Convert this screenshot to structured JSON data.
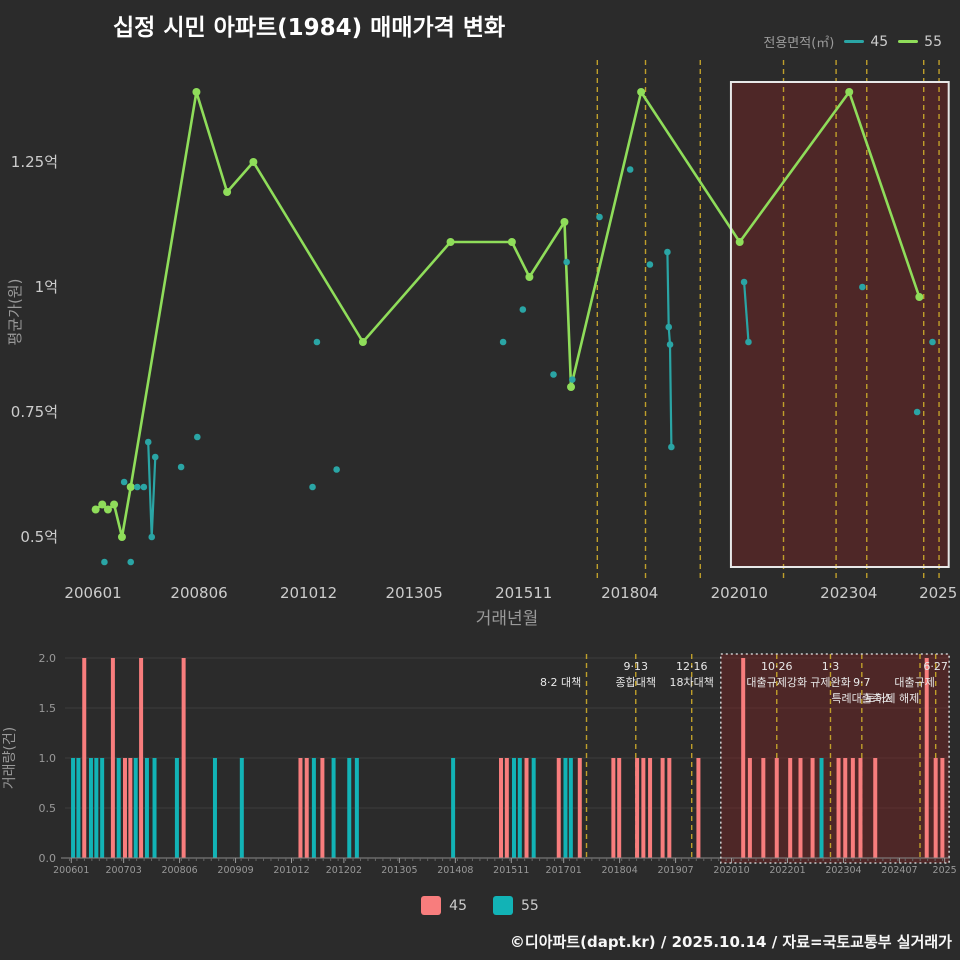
{
  "title": "십정 시민 아파트(1984) 매매가격 변화",
  "footer": "©디아파트(dapt.kr) / 2025.10.14 / 자료=국토교통부 실거래가",
  "colors": {
    "background": "#2b2b2b",
    "series_55_green": "#8fdd5a",
    "series_45_teal": "#2aa5a5",
    "bar_45_red": "#f87d7d",
    "bar_55_teal": "#12b3b6",
    "policy_line_gold": "#c7a62b",
    "highlight_fill": "rgba(160,30,30,0.30)",
    "highlight_border": "#e8e8e8",
    "axis_text": "#cccccc",
    "axis_title": "#999999",
    "grid": "#3c3c3c"
  },
  "legend_top": {
    "label": "전용면적(㎡)",
    "items": [
      {
        "name": "45",
        "color": "#2aa5a5"
      },
      {
        "name": "55",
        "color": "#8fdd5a"
      }
    ]
  },
  "legend_bottom": {
    "items": [
      {
        "name": "45",
        "color": "#f87d7d"
      },
      {
        "name": "55",
        "color": "#12b3b6"
      }
    ]
  },
  "chart_data": [
    {
      "type": "line",
      "title": "십정 시민 아파트(1984) 매매가격 변화",
      "xlabel": "거래년월",
      "ylabel": "평균가(원)",
      "x_domain": [
        2005.4,
        2025.6
      ],
      "y_domain": [
        0.424,
        1.454
      ],
      "y_unit": "억",
      "grid": "off",
      "legend_position": "top-right",
      "x_ticks": [
        {
          "v": 2006.04,
          "label": "200601"
        },
        {
          "v": 2008.46,
          "label": "200806"
        },
        {
          "v": 2010.96,
          "label": "201012"
        },
        {
          "v": 2013.37,
          "label": "201305"
        },
        {
          "v": 2015.87,
          "label": "201511"
        },
        {
          "v": 2018.29,
          "label": "201804"
        },
        {
          "v": 2020.79,
          "label": "202010"
        },
        {
          "v": 2023.29,
          "label": "202304"
        },
        {
          "v": 2025.33,
          "label": "2025"
        }
      ],
      "y_ticks": [
        {
          "v": 0.5,
          "label": "0.5억"
        },
        {
          "v": 0.75,
          "label": "0.75억"
        },
        {
          "v": 1.0,
          "label": "1억"
        },
        {
          "v": 1.25,
          "label": "1.25억"
        }
      ],
      "policy_lines": [
        2017.55,
        2018.65,
        2019.9,
        2021.8,
        2023.0,
        2023.7,
        2025.0,
        2025.35
      ],
      "highlight_box": {
        "x0": 2020.6,
        "x1": 2025.57,
        "y0": 0.44,
        "y1": 1.41
      },
      "series": [
        {
          "name": "55",
          "style": "line+points",
          "points": [
            [
              2006.1,
              0.555
            ],
            [
              2006.25,
              0.565
            ],
            [
              2006.38,
              0.555
            ],
            [
              2006.52,
              0.565
            ],
            [
              2006.7,
              0.5
            ],
            [
              2006.9,
              0.6
            ],
            [
              2008.4,
              1.39
            ],
            [
              2009.1,
              1.19
            ],
            [
              2009.7,
              1.25
            ],
            [
              2012.2,
              0.89
            ],
            [
              2014.2,
              1.09
            ],
            [
              2015.6,
              1.09
            ],
            [
              2016.0,
              1.02
            ],
            [
              2016.8,
              1.13
            ],
            [
              2016.95,
              0.8
            ],
            [
              2018.55,
              1.39
            ],
            [
              2020.8,
              1.09
            ],
            [
              2023.3,
              1.39
            ],
            [
              2024.9,
              0.98
            ]
          ]
        },
        {
          "name": "45",
          "style": "scatter+segments",
          "segments": [
            [
              [
                2006.3,
                0.45
              ]
            ],
            [
              [
                2006.75,
                0.61
              ]
            ],
            [
              [
                2006.9,
                0.45
              ]
            ],
            [
              [
                2007.05,
                0.6
              ]
            ],
            [
              [
                2007.2,
                0.6
              ]
            ],
            [
              [
                2007.3,
                0.69
              ],
              [
                2007.38,
                0.5
              ],
              [
                2007.46,
                0.66
              ]
            ],
            [
              [
                2008.05,
                0.64
              ]
            ],
            [
              [
                2008.42,
                0.7
              ]
            ],
            [
              [
                2011.05,
                0.6
              ]
            ],
            [
              [
                2011.15,
                0.89
              ]
            ],
            [
              [
                2011.6,
                0.635
              ]
            ],
            [
              [
                2015.4,
                0.89
              ]
            ],
            [
              [
                2015.85,
                0.955
              ]
            ],
            [
              [
                2016.55,
                0.825
              ]
            ],
            [
              [
                2016.85,
                1.05
              ]
            ],
            [
              [
                2016.98,
                0.815
              ]
            ],
            [
              [
                2017.6,
                1.14
              ]
            ],
            [
              [
                2018.3,
                1.235
              ]
            ],
            [
              [
                2018.75,
                1.045
              ]
            ],
            [
              [
                2019.15,
                1.07
              ],
              [
                2019.18,
                0.92
              ],
              [
                2019.21,
                0.885
              ],
              [
                2019.24,
                0.68
              ]
            ],
            [
              [
                2020.9,
                1.01
              ],
              [
                2021.0,
                0.89
              ]
            ],
            [
              [
                2023.6,
                1.0
              ]
            ],
            [
              [
                2024.85,
                0.75
              ]
            ],
            [
              [
                2025.2,
                0.89
              ]
            ]
          ]
        }
      ]
    },
    {
      "type": "bar",
      "ylabel": "거래량(건)",
      "x_domain": [
        2005.9,
        2025.67
      ],
      "y_domain": [
        0,
        2.0
      ],
      "grid": "horizontal",
      "x_ticks": [
        {
          "v": 2006.04,
          "label": "200601"
        },
        {
          "v": 2007.21,
          "label": "200703"
        },
        {
          "v": 2008.46,
          "label": "200806"
        },
        {
          "v": 2009.71,
          "label": "200909"
        },
        {
          "v": 2010.96,
          "label": "201012"
        },
        {
          "v": 2012.13,
          "label": "201202"
        },
        {
          "v": 2013.37,
          "label": "201305"
        },
        {
          "v": 2014.62,
          "label": "201408"
        },
        {
          "v": 2015.87,
          "label": "201511"
        },
        {
          "v": 2017.04,
          "label": "201701"
        },
        {
          "v": 2018.29,
          "label": "201804"
        },
        {
          "v": 2019.54,
          "label": "201907"
        },
        {
          "v": 2020.79,
          "label": "202010"
        },
        {
          "v": 2022.04,
          "label": "202201"
        },
        {
          "v": 2023.29,
          "label": "202304"
        },
        {
          "v": 2024.54,
          "label": "202407"
        },
        {
          "v": 2025.55,
          "label": "2025"
        }
      ],
      "y_ticks": [
        {
          "v": 0.0,
          "label": "0.0"
        },
        {
          "v": 0.5,
          "label": "0.5"
        },
        {
          "v": 1.0,
          "label": "1.0"
        },
        {
          "v": 1.5,
          "label": "1.5"
        },
        {
          "v": 2.0,
          "label": "2.0"
        }
      ],
      "policy_lines": [
        2017.55,
        2018.65,
        2019.9,
        2021.8,
        2023.0,
        2023.7,
        2025.0,
        2025.35
      ],
      "highlight_box": {
        "x0": 2020.55,
        "x1": 2025.65
      },
      "annotations": [
        {
          "x": 2017.5,
          "row": 1,
          "align": "end",
          "text": "8·2 대책"
        },
        {
          "x": 2018.65,
          "row": 0,
          "align": "middle",
          "text": "9·13"
        },
        {
          "x": 2018.65,
          "row": 1,
          "align": "middle",
          "text": "종합대책"
        },
        {
          "x": 2019.9,
          "row": 0,
          "align": "middle",
          "text": "12·16"
        },
        {
          "x": 2019.9,
          "row": 1,
          "align": "middle",
          "text": "18차대책"
        },
        {
          "x": 2021.8,
          "row": 0,
          "align": "middle",
          "text": "10·26"
        },
        {
          "x": 2021.8,
          "row": 1,
          "align": "middle",
          "text": "대출규제강화"
        },
        {
          "x": 2023.0,
          "row": 0,
          "align": "middle",
          "text": "1·3"
        },
        {
          "x": 2023.0,
          "row": 1,
          "align": "middle",
          "text": "규제완화"
        },
        {
          "x": 2023.7,
          "row": 1,
          "align": "middle",
          "text": "9·7"
        },
        {
          "x": 2023.7,
          "row": 2,
          "align": "middle",
          "text": "특례대출축소"
        },
        {
          "x": 2025.05,
          "row": 2,
          "align": "end",
          "text": "토허제 해제"
        },
        {
          "x": 2025.35,
          "row": 0,
          "align": "middle",
          "text": "6·27"
        },
        {
          "x": 2025.4,
          "row": 1,
          "align": "end",
          "text": "대출규제"
        }
      ],
      "bars": [
        [
          2006.08,
          "55",
          1
        ],
        [
          2006.2,
          "55",
          1
        ],
        [
          2006.33,
          "45",
          2
        ],
        [
          2006.48,
          "55",
          1
        ],
        [
          2006.6,
          "55",
          1
        ],
        [
          2006.73,
          "55",
          1
        ],
        [
          2006.97,
          "45",
          2
        ],
        [
          2007.1,
          "55",
          1
        ],
        [
          2007.24,
          "45",
          1
        ],
        [
          2007.36,
          "45",
          1
        ],
        [
          2007.48,
          "55",
          1
        ],
        [
          2007.6,
          "45",
          2
        ],
        [
          2007.73,
          "55",
          1
        ],
        [
          2007.9,
          "55",
          1
        ],
        [
          2008.4,
          "55",
          1
        ],
        [
          2008.55,
          "45",
          2
        ],
        [
          2009.25,
          "55",
          1
        ],
        [
          2009.85,
          "55",
          1
        ],
        [
          2011.16,
          "45",
          1
        ],
        [
          2011.3,
          "45",
          1
        ],
        [
          2011.46,
          "55",
          1
        ],
        [
          2011.65,
          "45",
          1
        ],
        [
          2011.9,
          "55",
          1
        ],
        [
          2012.25,
          "55",
          1
        ],
        [
          2012.42,
          "55",
          1
        ],
        [
          2014.57,
          "55",
          1
        ],
        [
          2015.64,
          "45",
          1
        ],
        [
          2015.77,
          "45",
          1
        ],
        [
          2015.93,
          "55",
          1
        ],
        [
          2016.06,
          "55",
          1
        ],
        [
          2016.21,
          "45",
          1
        ],
        [
          2016.37,
          "55",
          1
        ],
        [
          2016.93,
          "45",
          1
        ],
        [
          2017.08,
          "55",
          1
        ],
        [
          2017.2,
          "55",
          1
        ],
        [
          2017.4,
          "45",
          1
        ],
        [
          2018.15,
          "45",
          1
        ],
        [
          2018.28,
          "45",
          1
        ],
        [
          2018.68,
          "45",
          1
        ],
        [
          2018.82,
          "45",
          1
        ],
        [
          2018.97,
          "45",
          1
        ],
        [
          2019.25,
          "45",
          1
        ],
        [
          2019.4,
          "45",
          1
        ],
        [
          2020.05,
          "45",
          1
        ],
        [
          2021.05,
          "45",
          2
        ],
        [
          2021.2,
          "45",
          1
        ],
        [
          2021.5,
          "45",
          1
        ],
        [
          2021.8,
          "45",
          1
        ],
        [
          2022.1,
          "45",
          1
        ],
        [
          2022.33,
          "45",
          1
        ],
        [
          2022.6,
          "45",
          1
        ],
        [
          2022.8,
          "55",
          1
        ],
        [
          2023.18,
          "45",
          1
        ],
        [
          2023.33,
          "45",
          1
        ],
        [
          2023.5,
          "45",
          1
        ],
        [
          2023.67,
          "45",
          1
        ],
        [
          2024.0,
          "45",
          1
        ],
        [
          2025.15,
          "45",
          2
        ],
        [
          2025.35,
          "45",
          1
        ],
        [
          2025.5,
          "45",
          1
        ]
      ]
    }
  ]
}
